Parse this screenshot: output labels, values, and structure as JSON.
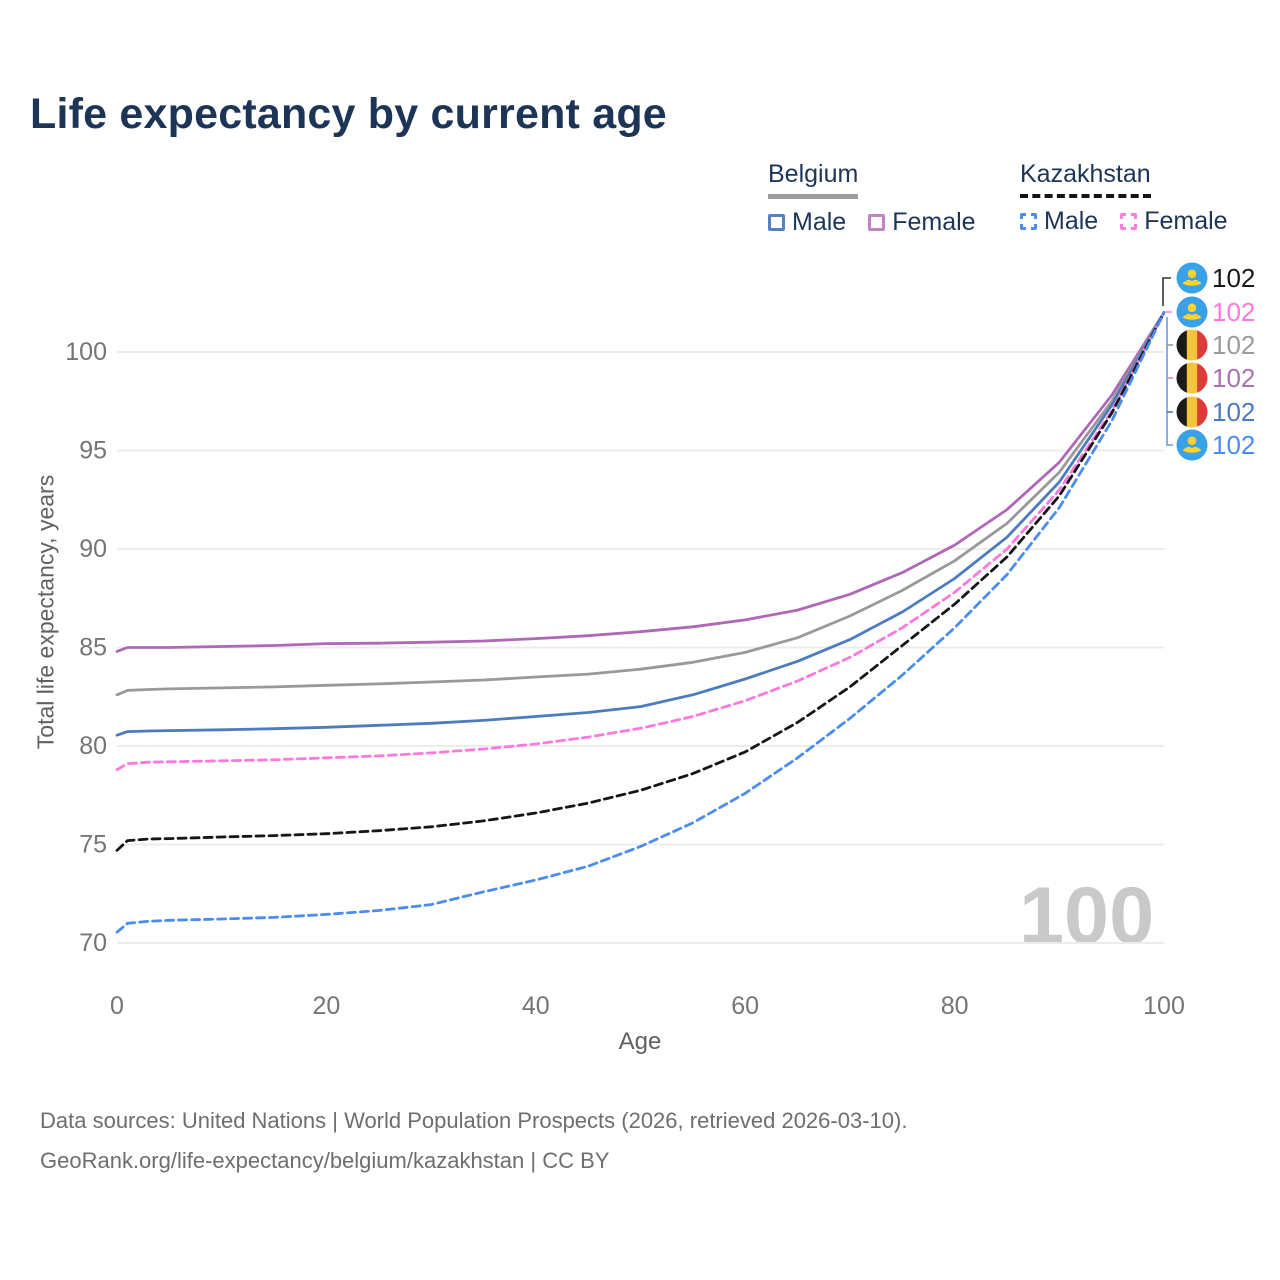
{
  "title": "Life expectancy by current age",
  "legend": {
    "groups": [
      {
        "label": "Belgium",
        "line_style": "solid",
        "underline_color": "#9E9E9E",
        "items": [
          {
            "label": "Male",
            "color": "#5581C2"
          },
          {
            "label": "Female",
            "color": "#C084C6"
          }
        ]
      },
      {
        "label": "Kazakhstan",
        "line_style": "dashed",
        "underline_color": "#141414",
        "items": [
          {
            "label": "Male",
            "color": "#4A8CF2"
          },
          {
            "label": "Female",
            "color": "#FF7ADE"
          }
        ]
      }
    ]
  },
  "chart_data": {
    "type": "line",
    "title": "Life expectancy by current age",
    "xlabel": "Age",
    "ylabel": "Total life expectancy, years",
    "xlim": [
      0,
      100
    ],
    "ylim": [
      68,
      103
    ],
    "xticks": [
      0,
      20,
      40,
      60,
      80,
      100
    ],
    "yticks": [
      70,
      75,
      80,
      85,
      90,
      95,
      100
    ],
    "grid": "horizontal-only",
    "legend_position": "top-right",
    "x": [
      0,
      1,
      3,
      5,
      10,
      15,
      20,
      25,
      30,
      35,
      40,
      45,
      50,
      55,
      60,
      65,
      70,
      75,
      80,
      85,
      90,
      95,
      100
    ],
    "series": [
      {
        "id": "belgium-female",
        "name": "Belgium Female",
        "country": "Belgium",
        "sex": "Female",
        "color": "#AE68B5",
        "dash": false,
        "values": [
          84.8,
          85.0,
          85.0,
          85.0,
          85.05,
          85.1,
          85.2,
          85.22,
          85.27,
          85.33,
          85.45,
          85.6,
          85.8,
          86.05,
          86.4,
          86.9,
          87.7,
          88.8,
          90.2,
          92.0,
          94.4,
          97.8,
          102
        ]
      },
      {
        "id": "belgium-total",
        "name": "Belgium (both sexes)",
        "country": "Belgium",
        "sex": "Both",
        "color": "#999999",
        "dash": false,
        "values": [
          82.6,
          82.82,
          82.87,
          82.9,
          82.95,
          83.0,
          83.08,
          83.15,
          83.25,
          83.35,
          83.5,
          83.65,
          83.9,
          84.25,
          84.75,
          85.5,
          86.6,
          87.9,
          89.4,
          91.3,
          93.9,
          97.5,
          102
        ]
      },
      {
        "id": "belgium-male",
        "name": "Belgium Male",
        "country": "Belgium",
        "sex": "Male",
        "color": "#4C7CBE",
        "dash": false,
        "values": [
          80.55,
          80.73,
          80.76,
          80.78,
          80.82,
          80.88,
          80.95,
          81.05,
          81.15,
          81.3,
          81.5,
          81.7,
          82.0,
          82.6,
          83.4,
          84.3,
          85.4,
          86.8,
          88.5,
          90.6,
          93.4,
          97.3,
          102
        ]
      },
      {
        "id": "kazakhstan-female",
        "name": "Kazakhstan Female",
        "country": "Kazakhstan",
        "sex": "Female",
        "color": "#FF79DC",
        "dash": true,
        "values": [
          78.8,
          79.1,
          79.18,
          79.2,
          79.25,
          79.3,
          79.4,
          79.5,
          79.65,
          79.85,
          80.1,
          80.45,
          80.9,
          81.5,
          82.3,
          83.3,
          84.5,
          86.0,
          87.8,
          90.0,
          93.0,
          97.0,
          102
        ]
      },
      {
        "id": "kazakhstan-total",
        "name": "Kazakhstan (both sexes)",
        "country": "Kazakhstan",
        "sex": "Both",
        "color": "#161616",
        "dash": true,
        "values": [
          74.7,
          75.2,
          75.28,
          75.3,
          75.38,
          75.45,
          75.55,
          75.7,
          75.9,
          76.2,
          76.6,
          77.1,
          77.75,
          78.6,
          79.7,
          81.2,
          83.0,
          85.1,
          87.2,
          89.6,
          92.7,
          96.9,
          102
        ]
      },
      {
        "id": "kazakhstan-male",
        "name": "Kazakhstan Male",
        "country": "Kazakhstan",
        "sex": "Male",
        "color": "#4A8CF2",
        "dash": true,
        "values": [
          70.55,
          71.0,
          71.1,
          71.15,
          71.22,
          71.3,
          71.45,
          71.65,
          71.95,
          72.6,
          73.2,
          73.9,
          74.9,
          76.1,
          77.6,
          79.4,
          81.4,
          83.6,
          86.0,
          88.7,
          92.1,
          96.5,
          102
        ]
      }
    ]
  },
  "endpoint_labels": [
    {
      "flag": "kazakhstan",
      "value": "102",
      "color": "#1A1A1A"
    },
    {
      "flag": "kazakhstan",
      "value": "102",
      "color": "#FF79DC"
    },
    {
      "flag": "belgium",
      "value": "102",
      "color": "#9B9B9B"
    },
    {
      "flag": "belgium",
      "value": "102",
      "color": "#A873B0"
    },
    {
      "flag": "belgium",
      "value": "102",
      "color": "#4C7CBE"
    },
    {
      "flag": "kazakhstan",
      "value": "102",
      "color": "#4A8CF2"
    }
  ],
  "watermark": "100",
  "footer": {
    "line1": "Data sources: United Nations | World Population Prospects (2026, retrieved 2026-03-10).",
    "line2": "GeoRank.org/life-expectancy/belgium/kazakhstan | CC BY"
  }
}
